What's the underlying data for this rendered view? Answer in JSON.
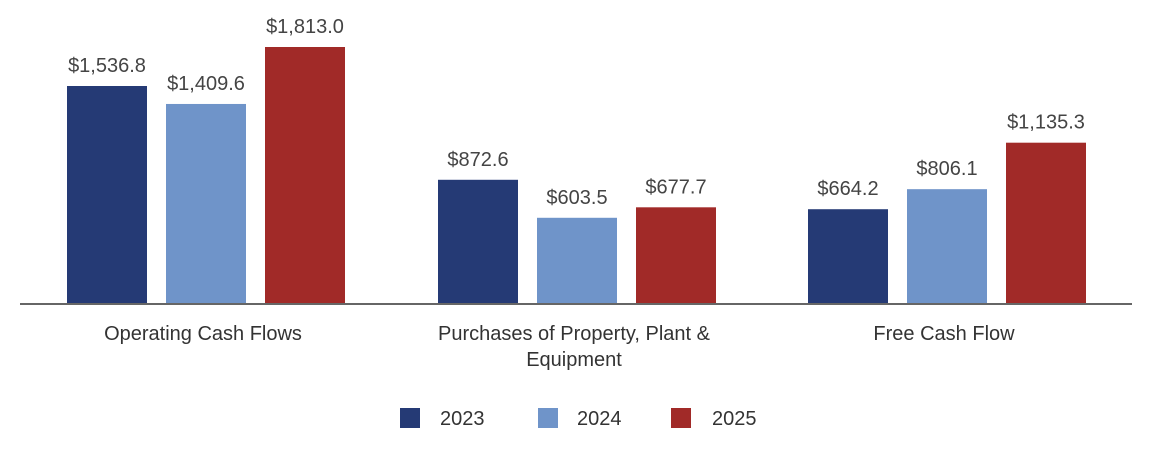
{
  "chart_data": {
    "type": "bar",
    "title": "",
    "xlabel": "",
    "ylabel": "",
    "ylim": [
      0,
      1900
    ],
    "grid": false,
    "legend": "bottom-center",
    "categories": [
      [
        "Operating Cash Flows"
      ],
      [
        "Purchases of Property, Plant &",
        "Equipment"
      ],
      [
        "Free Cash Flow"
      ]
    ],
    "series": [
      {
        "name": "2023",
        "color": "#253a75",
        "values": [
          1536.8,
          872.6,
          664.2
        ],
        "labels": [
          "$1,536.8",
          "$872.6",
          "$664.2"
        ]
      },
      {
        "name": "2024",
        "color": "#6f94c9",
        "values": [
          1409.6,
          603.5,
          806.1
        ],
        "labels": [
          "$1,409.6",
          "$603.5",
          "$806.1"
        ]
      },
      {
        "name": "2025",
        "color": "#a12a28",
        "values": [
          1813.0,
          677.7,
          1135.3
        ],
        "labels": [
          "$1,813.0",
          "$677.7",
          "$1,135.3"
        ]
      }
    ]
  }
}
